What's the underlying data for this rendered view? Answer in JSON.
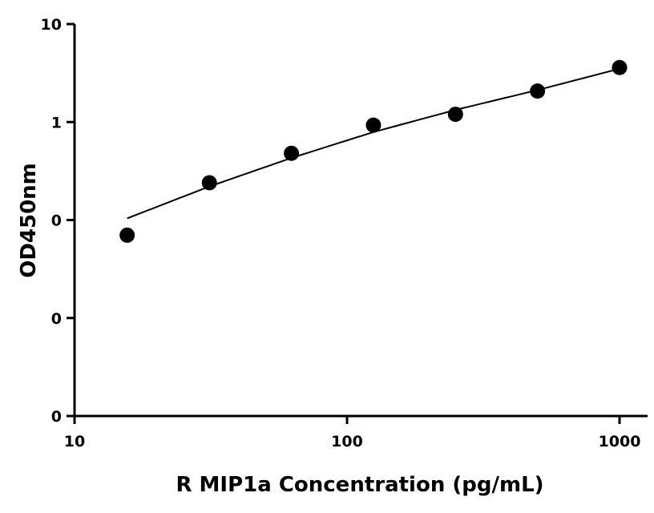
{
  "chart_data": {
    "type": "scatter",
    "title": "",
    "xlabel": "R MIP1a Concentration (pg/mL)",
    "ylabel": "OD450nm",
    "x_scale": "log",
    "y_scale": "log",
    "xlim": [
      10,
      1100
    ],
    "ylim": [
      0.001,
      10
    ],
    "x_ticks": [
      10,
      100,
      1000
    ],
    "x_tick_labels": [
      "10",
      "100",
      "1000"
    ],
    "y_ticks": [
      0.001,
      0.01,
      0.1,
      1,
      10
    ],
    "y_tick_labels": [
      "0",
      "0",
      "0",
      "1",
      "10"
    ],
    "grid": false,
    "series": [
      {
        "x": [
          15.6,
          31.25,
          62.5,
          125,
          250,
          500,
          1000
        ],
        "y": [
          0.07,
          0.24,
          0.48,
          0.93,
          1.2,
          2.07,
          3.6
        ]
      }
    ],
    "fit_curve": {
      "x": [
        15.6,
        31.25,
        62.5,
        125,
        250,
        500,
        1000
      ],
      "y": [
        0.104,
        0.22,
        0.43,
        0.79,
        1.33,
        2.12,
        3.5
      ]
    },
    "colors": {
      "marker": "#000000",
      "line": "#000000",
      "axis": "#000000"
    }
  }
}
